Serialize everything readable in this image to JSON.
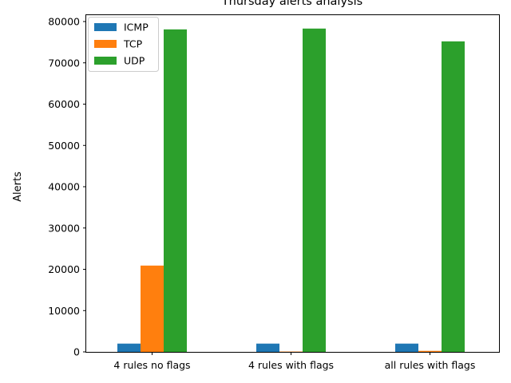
{
  "chart_data": {
    "type": "bar",
    "title": "Thursday alerts analysis",
    "xlabel": "",
    "ylabel": "Alerts",
    "categories": [
      "4 rules no flags",
      "4 rules with flags",
      "all rules with flags"
    ],
    "series": [
      {
        "name": "ICMP",
        "color": "#1f77b4",
        "values": [
          2000,
          2000,
          2000
        ]
      },
      {
        "name": "TCP",
        "color": "#ff7f0e",
        "values": [
          20900,
          80,
          250
        ]
      },
      {
        "name": "UDP",
        "color": "#2ca02c",
        "values": [
          78100,
          78300,
          75200
        ]
      }
    ],
    "ylim": [
      0,
      80000
    ],
    "yticks": [
      "0",
      "10000",
      "20000",
      "30000",
      "40000",
      "50000",
      "60000",
      "70000",
      "80000"
    ],
    "grid": false,
    "legend_position": "top-left"
  }
}
